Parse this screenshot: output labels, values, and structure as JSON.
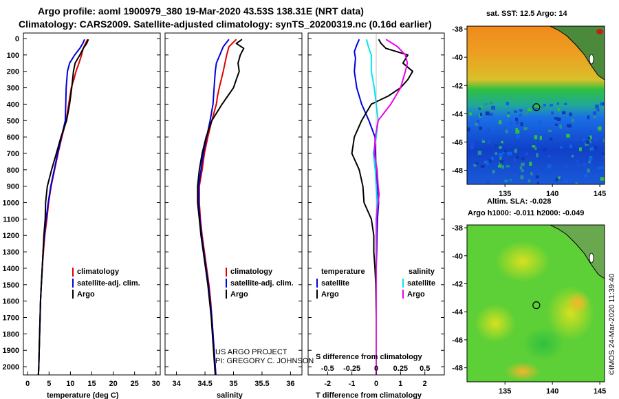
{
  "title_line1": "Argo profile: aoml 1900979_380 19-Mar-2020 43.53S 138.31E (NRT data)",
  "title_line2": "Climatology: CARS2009. Satellite-adjusted climatology: synTS_20200319.nc (0.16d earlier)",
  "credit_line1": "US ARGO PROJECT",
  "credit_line2": "PI: GREGORY C. JOHNSON",
  "timestamp": "©IMOS 24-Mar-2020 11:39:40",
  "colors": {
    "climatology": "#e00000",
    "satellite": "#0000dd",
    "argo": "#000000",
    "sal_satellite": "#00e8ee",
    "sal_argo": "#ee00ee"
  },
  "chart_data": [
    {
      "type": "line",
      "id": "temperature",
      "xlabel": "temperature (deg C)",
      "xlim": [
        -1,
        31
      ],
      "xticks": [
        "0",
        "5",
        "10",
        "15",
        "20",
        "25",
        "30"
      ],
      "ylim": [
        2050,
        0
      ],
      "yticks": [
        "0",
        "100",
        "200",
        "300",
        "400",
        "500",
        "600",
        "700",
        "800",
        "900",
        "1000",
        "1100",
        "1200",
        "1300",
        "1400",
        "1500",
        "1600",
        "1700",
        "1800",
        "1900",
        "2000"
      ],
      "legend": [
        "climatology",
        "satellite-adj. clim.",
        "Argo"
      ],
      "series": [
        {
          "name": "climatology",
          "color": "#e00000",
          "points": [
            [
              14,
              5
            ],
            [
              13.5,
              30
            ],
            [
              13,
              60
            ],
            [
              12.6,
              100
            ],
            [
              12,
              150
            ],
            [
              11.3,
              200
            ],
            [
              10.8,
              250
            ],
            [
              10.2,
              300
            ],
            [
              9.6,
              400
            ],
            [
              9.0,
              500
            ],
            [
              8.0,
              600
            ],
            [
              7.1,
              700
            ],
            [
              6.3,
              800
            ],
            [
              5.5,
              900
            ],
            [
              4.9,
              1000
            ],
            [
              4.5,
              1100
            ],
            [
              4.0,
              1200
            ],
            [
              3.7,
              1300
            ],
            [
              3.4,
              1400
            ],
            [
              3.2,
              1500
            ],
            [
              3.0,
              1600
            ],
            [
              2.9,
              1700
            ],
            [
              2.8,
              1800
            ],
            [
              2.7,
              1900
            ],
            [
              2.6,
              2000
            ],
            [
              2.5,
              2050
            ]
          ]
        },
        {
          "name": "satellite-adj. clim.",
          "color": "#0000dd",
          "points": [
            [
              13.3,
              5
            ],
            [
              12.9,
              30
            ],
            [
              12.2,
              60
            ],
            [
              11,
              100
            ],
            [
              9.8,
              150
            ],
            [
              9.3,
              200
            ],
            [
              9.0,
              300
            ],
            [
              8.9,
              400
            ],
            [
              8.8,
              500
            ],
            [
              7.9,
              600
            ],
            [
              7.0,
              700
            ],
            [
              6.2,
              800
            ],
            [
              5.4,
              900
            ],
            [
              4.8,
              1000
            ],
            [
              4.3,
              1100
            ],
            [
              3.9,
              1200
            ],
            [
              3.6,
              1300
            ],
            [
              3.4,
              1400
            ],
            [
              3.2,
              1500
            ],
            [
              3.0,
              1600
            ],
            [
              2.9,
              1700
            ],
            [
              2.8,
              1800
            ],
            [
              2.7,
              1900
            ],
            [
              2.6,
              2000
            ],
            [
              2.5,
              2050
            ]
          ]
        },
        {
          "name": "Argo",
          "color": "#000000",
          "points": [
            [
              14.2,
              5
            ],
            [
              13.8,
              30
            ],
            [
              13.0,
              60
            ],
            [
              12.2,
              100
            ],
            [
              11.1,
              150
            ],
            [
              10.7,
              200
            ],
            [
              10.3,
              300
            ],
            [
              9.8,
              400
            ],
            [
              9.1,
              500
            ],
            [
              7.8,
              600
            ],
            [
              6.7,
              700
            ],
            [
              5.6,
              800
            ],
            [
              4.6,
              900
            ],
            [
              4.2,
              1000
            ],
            [
              4.1,
              1100
            ],
            [
              3.8,
              1200
            ],
            [
              3.6,
              1300
            ],
            [
              3.4,
              1400
            ],
            [
              3.2,
              1500
            ],
            [
              3.0,
              1600
            ],
            [
              2.9,
              1700
            ],
            [
              2.8,
              1800
            ],
            [
              2.7,
              1900
            ],
            [
              2.6,
              2000
            ],
            [
              2.5,
              2050
            ]
          ]
        }
      ]
    },
    {
      "type": "line",
      "id": "salinity",
      "xlabel": "salinity",
      "xlim": [
        33.8,
        36.2
      ],
      "xticks": [
        "34",
        "34.5",
        "35",
        "35.5",
        "36"
      ],
      "ylim": [
        2050,
        0
      ],
      "legend": [
        "climatology",
        "satellite-adj. clim.",
        "Argo"
      ],
      "series": [
        {
          "name": "climatology",
          "color": "#e00000",
          "points": [
            [
              35.05,
              5
            ],
            [
              34.92,
              50
            ],
            [
              34.88,
              100
            ],
            [
              34.85,
              150
            ],
            [
              34.82,
              200
            ],
            [
              34.75,
              300
            ],
            [
              34.72,
              350
            ],
            [
              34.7,
              400
            ],
            [
              34.62,
              500
            ],
            [
              34.55,
              600
            ],
            [
              34.49,
              700
            ],
            [
              34.45,
              800
            ],
            [
              34.4,
              900
            ],
            [
              34.4,
              1000
            ],
            [
              34.42,
              1100
            ],
            [
              34.45,
              1200
            ],
            [
              34.49,
              1300
            ],
            [
              34.53,
              1400
            ],
            [
              34.57,
              1500
            ],
            [
              34.6,
              1600
            ],
            [
              34.62,
              1700
            ],
            [
              34.64,
              1800
            ],
            [
              34.66,
              1900
            ],
            [
              34.68,
              2000
            ],
            [
              34.69,
              2050
            ]
          ]
        },
        {
          "name": "satellite-adj. clim.",
          "color": "#0000dd",
          "points": [
            [
              34.92,
              5
            ],
            [
              34.82,
              50
            ],
            [
              34.76,
              100
            ],
            [
              34.7,
              150
            ],
            [
              34.68,
              200
            ],
            [
              34.66,
              300
            ],
            [
              34.64,
              400
            ],
            [
              34.59,
              500
            ],
            [
              34.53,
              600
            ],
            [
              34.47,
              700
            ],
            [
              34.43,
              800
            ],
            [
              34.39,
              900
            ],
            [
              34.39,
              1000
            ],
            [
              34.41,
              1100
            ],
            [
              34.44,
              1200
            ],
            [
              34.48,
              1300
            ],
            [
              34.52,
              1400
            ],
            [
              34.56,
              1500
            ],
            [
              34.59,
              1600
            ],
            [
              34.62,
              1700
            ],
            [
              34.64,
              1800
            ],
            [
              34.66,
              1900
            ],
            [
              34.68,
              2000
            ],
            [
              34.69,
              2050
            ]
          ]
        },
        {
          "name": "Argo",
          "color": "#000000",
          "points": [
            [
              35.15,
              5
            ],
            [
              35.05,
              30
            ],
            [
              35.18,
              60
            ],
            [
              35.12,
              100
            ],
            [
              35.08,
              150
            ],
            [
              35.1,
              200
            ],
            [
              35.05,
              250
            ],
            [
              35.0,
              300
            ],
            [
              34.9,
              350
            ],
            [
              34.8,
              400
            ],
            [
              34.62,
              500
            ],
            [
              34.52,
              600
            ],
            [
              34.45,
              700
            ],
            [
              34.4,
              800
            ],
            [
              34.37,
              900
            ],
            [
              34.37,
              1000
            ],
            [
              34.4,
              1100
            ],
            [
              34.43,
              1200
            ],
            [
              34.47,
              1300
            ],
            [
              34.51,
              1400
            ],
            [
              34.55,
              1500
            ],
            [
              34.58,
              1600
            ],
            [
              34.61,
              1700
            ],
            [
              34.63,
              1800
            ],
            [
              34.65,
              1900
            ],
            [
              34.67,
              2000
            ],
            [
              34.68,
              2050
            ]
          ]
        }
      ]
    },
    {
      "type": "line",
      "id": "difference",
      "xlabel": "T difference from climatology",
      "x2label": "S difference from climatology",
      "xlim": [
        -2.8,
        2.8
      ],
      "xticks": [
        "-2",
        "-1",
        "0",
        "1",
        "2"
      ],
      "x2ticks": [
        "-0.5",
        "-0.25",
        "0",
        "0.25",
        "0.5"
      ],
      "x2lim": [
        -0.7,
        0.7
      ],
      "ylim": [
        2050,
        0
      ],
      "legend_title_t": "temperature",
      "legend_title_s": "salinity",
      "legend_t": [
        "satellite",
        "Argo"
      ],
      "legend_s": [
        "satellite",
        "Argo"
      ],
      "series": [
        {
          "name": "T satellite",
          "axis": "T",
          "color": "#0000dd",
          "points": [
            [
              -0.7,
              5
            ],
            [
              -0.8,
              40
            ],
            [
              -0.9,
              80
            ],
            [
              -0.85,
              120
            ],
            [
              -0.9,
              200
            ],
            [
              -0.8,
              300
            ],
            [
              -0.6,
              400
            ],
            [
              -0.3,
              500
            ],
            [
              -0.05,
              600
            ],
            [
              0.0,
              800
            ],
            [
              0.05,
              900
            ],
            [
              0.1,
              1000
            ],
            [
              0.05,
              1100
            ],
            [
              0.03,
              1200
            ],
            [
              0.02,
              1300
            ],
            [
              0.0,
              1400
            ],
            [
              0.0,
              1500
            ],
            [
              0.0,
              1700
            ],
            [
              0.0,
              2050
            ]
          ]
        },
        {
          "name": "T Argo",
          "axis": "T",
          "color": "#000000",
          "points": [
            [
              0.1,
              5
            ],
            [
              0.2,
              30
            ],
            [
              0.4,
              60
            ],
            [
              1.3,
              100
            ],
            [
              1.1,
              150
            ],
            [
              1.5,
              200
            ],
            [
              1.3,
              250
            ],
            [
              1.0,
              300
            ],
            [
              0.5,
              350
            ],
            [
              -0.2,
              400
            ],
            [
              -0.6,
              500
            ],
            [
              -0.9,
              600
            ],
            [
              -1.0,
              700
            ],
            [
              -0.7,
              800
            ],
            [
              -0.55,
              900
            ],
            [
              -0.5,
              1000
            ],
            [
              -0.2,
              1100
            ],
            [
              -0.1,
              1200
            ],
            [
              -0.1,
              1300
            ],
            [
              -0.05,
              1400
            ],
            [
              -0.02,
              1500
            ],
            [
              0.0,
              1700
            ],
            [
              0.0,
              2050
            ]
          ]
        },
        {
          "name": "S satellite",
          "axis": "S",
          "color": "#00e8ee",
          "points": [
            [
              -0.1,
              5
            ],
            [
              -0.08,
              50
            ],
            [
              -0.05,
              100
            ],
            [
              -0.05,
              200
            ],
            [
              -0.02,
              300
            ],
            [
              0.0,
              400
            ],
            [
              0.02,
              500
            ],
            [
              0.0,
              600
            ],
            [
              -0.03,
              700
            ],
            [
              -0.01,
              800
            ],
            [
              0.0,
              900
            ],
            [
              0.01,
              1000
            ],
            [
              0.0,
              1100
            ],
            [
              0.0,
              1500
            ],
            [
              0.0,
              2050
            ]
          ]
        },
        {
          "name": "S Argo",
          "axis": "S",
          "color": "#ee00ee",
          "points": [
            [
              0.1,
              5
            ],
            [
              0.22,
              50
            ],
            [
              0.3,
              100
            ],
            [
              0.32,
              150
            ],
            [
              0.3,
              200
            ],
            [
              0.25,
              300
            ],
            [
              0.15,
              400
            ],
            [
              0.02,
              500
            ],
            [
              -0.01,
              600
            ],
            [
              -0.02,
              700
            ],
            [
              0.01,
              800
            ],
            [
              0.02,
              900
            ],
            [
              0.03,
              950
            ],
            [
              0.02,
              1000
            ],
            [
              0.0,
              1100
            ],
            [
              0.0,
              1500
            ],
            [
              0.0,
              2050
            ]
          ]
        }
      ]
    },
    {
      "type": "heatmap",
      "id": "sst_map",
      "title": "sat. SST: 12.5 Argo: 14",
      "xlim": [
        131,
        145.5
      ],
      "ylim": [
        -49,
        -37.8
      ],
      "xticks": [
        "135",
        "140",
        "145"
      ],
      "yticks": [
        "-38",
        "-40",
        "-42",
        "-44",
        "-46",
        "-48"
      ],
      "marker": {
        "lon": 138.31,
        "lat": -43.53
      }
    },
    {
      "type": "heatmap",
      "id": "sla_map",
      "title_line1": "Altim. SLA: -0.028",
      "title_line2": "Argo h1000: -0.011 h2000: -0.049",
      "xlim": [
        131,
        145.5
      ],
      "ylim": [
        -49,
        -37.8
      ],
      "xticks": [
        "135",
        "140",
        "145"
      ],
      "yticks": [
        "-38",
        "-40",
        "-42",
        "-44",
        "-46",
        "-48"
      ],
      "marker": {
        "lon": 138.31,
        "lat": -43.53
      }
    }
  ]
}
